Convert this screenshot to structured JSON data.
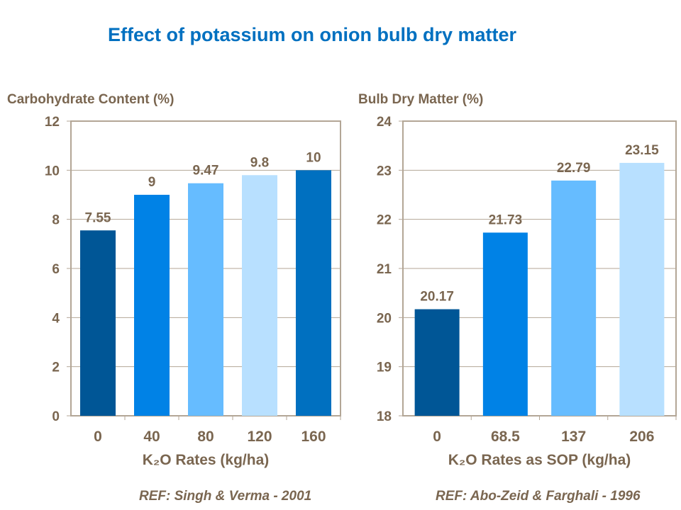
{
  "title": "Effect of potassium on onion bulb dry matter",
  "colors": {
    "text": "#7a6650",
    "grid": "#b3a696",
    "title": "#0070c0"
  },
  "chart_data": [
    {
      "type": "bar",
      "ylabel": "Carbohydrate Content (%)",
      "xlabel": "K₂O Rates (kg/ha)",
      "categories": [
        "0",
        "40",
        "80",
        "120",
        "160"
      ],
      "values": [
        7.55,
        9,
        9.47,
        9.8,
        10
      ],
      "value_labels": [
        "7.55",
        "9",
        "9.47",
        "9.8",
        "10"
      ],
      "ylim": [
        0,
        12
      ],
      "yticks": [
        "0",
        "2",
        "4",
        "6",
        "8",
        "10",
        "12"
      ],
      "grid": true,
      "bar_colors": [
        "#005696",
        "#0082e6",
        "#66bcff",
        "#b8e0ff",
        "#0070c0"
      ],
      "reference": "REF: Singh & Verma -  2001"
    },
    {
      "type": "bar",
      "ylabel": "Bulb Dry Matter (%)",
      "xlabel": "K₂O Rates as SOP (kg/ha)",
      "categories": [
        "0",
        "68.5",
        "137",
        "206"
      ],
      "values": [
        20.17,
        21.73,
        22.79,
        23.15
      ],
      "value_labels": [
        "20.17",
        "21.73",
        "22.79",
        "23.15"
      ],
      "ylim": [
        18,
        24
      ],
      "yticks": [
        "18",
        "19",
        "20",
        "21",
        "22",
        "23",
        "24"
      ],
      "grid": true,
      "bar_colors": [
        "#005696",
        "#0082e6",
        "#66bcff",
        "#b8e0ff"
      ],
      "reference": "REF: Abo-Zeid & Farghali - 1996"
    }
  ]
}
